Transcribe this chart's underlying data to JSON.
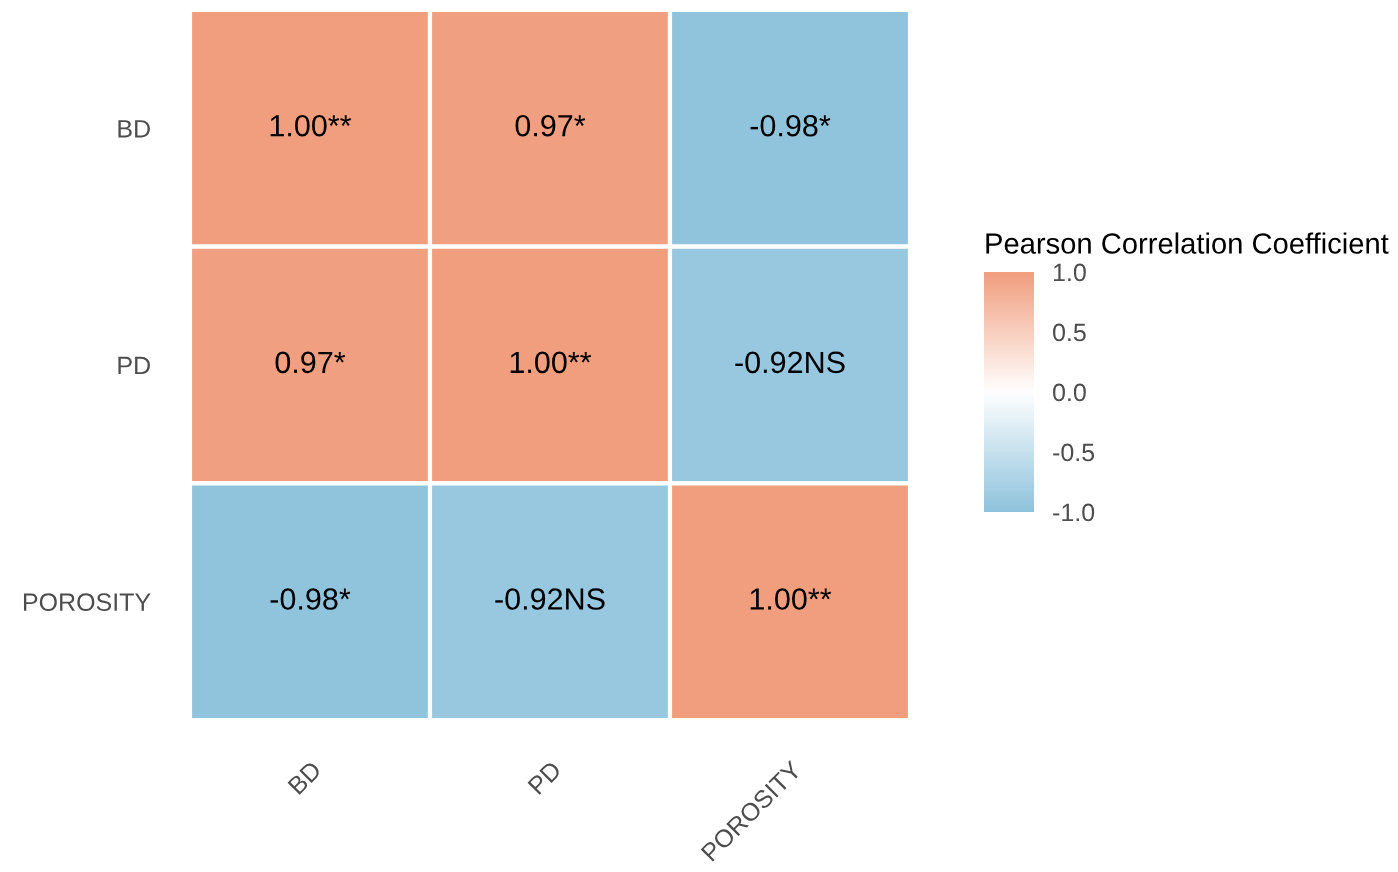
{
  "chart_data": {
    "type": "heatmap",
    "clabel": "Pearson Correlation Coefficient",
    "categories": [
      "BD",
      "PD",
      "POROSITY"
    ],
    "y_categories": [
      "BD",
      "PD",
      "POROSITY"
    ],
    "cells": [
      [
        1.0,
        0.97,
        -0.98
      ],
      [
        0.97,
        1.0,
        -0.92
      ],
      [
        -0.98,
        -0.92,
        1.0
      ]
    ],
    "cell_labels": [
      [
        "1.00**",
        "0.97*",
        "-0.98*"
      ],
      [
        "0.97*",
        "1.00**",
        "-0.92NS"
      ],
      [
        "-0.98*",
        "-0.92NS",
        "1.00**"
      ]
    ],
    "colors": [
      "#8ec3dc",
      "#ffffff",
      "#f09e7e"
    ],
    "clim": [
      -1.0,
      1.0
    ],
    "cticks": [
      {
        "value": 1.0,
        "label": "1.0"
      },
      {
        "value": 0.5,
        "label": "0.5"
      },
      {
        "value": 0.0,
        "label": "0.0"
      },
      {
        "value": -0.5,
        "label": "-0.5"
      },
      {
        "value": -1.0,
        "label": "-1.0"
      }
    ]
  }
}
